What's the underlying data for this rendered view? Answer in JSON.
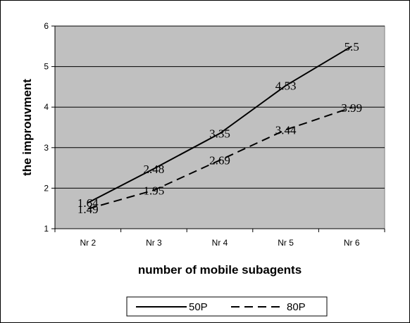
{
  "chart_data": {
    "type": "line",
    "title": "",
    "xlabel": "number of mobile subagents",
    "ylabel": "the improuvment",
    "categories": [
      "Nr 2",
      "Nr 3",
      "Nr 4",
      "Nr 5",
      "Nr 6"
    ],
    "ylim": [
      1,
      6
    ],
    "yticks": [
      "1",
      "2",
      "3",
      "4",
      "5",
      "6"
    ],
    "grid": true,
    "legend_position": "bottom",
    "plot_background": "#c0c0c0",
    "series": [
      {
        "name": "50P",
        "values": [
          1.64,
          2.48,
          3.35,
          4.53,
          5.5
        ],
        "labels": [
          "1.64",
          "2.48",
          "3.35",
          "4.53",
          "5.5"
        ],
        "color": "#000000",
        "dash": "solid"
      },
      {
        "name": "80P",
        "values": [
          1.49,
          1.95,
          2.69,
          3.44,
          3.99
        ],
        "labels": [
          "1.49",
          "1.95",
          "2.69",
          "3.44",
          "3.99"
        ],
        "color": "#000000",
        "dash": "dashed"
      }
    ]
  }
}
